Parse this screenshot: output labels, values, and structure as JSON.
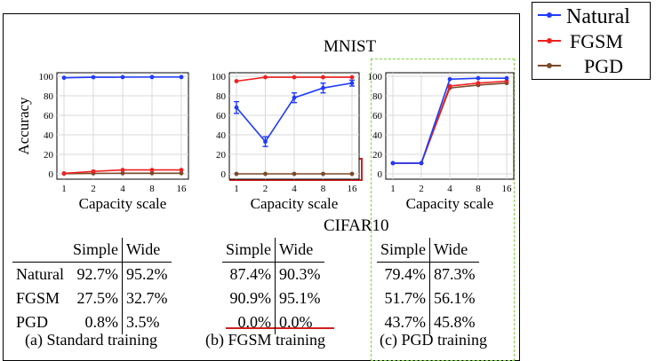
{
  "titles": {
    "mnist": "MNIST",
    "cifar": "CIFAR10"
  },
  "colors": {
    "natural": "#1f3bff",
    "fgsm": "#f02020",
    "pgd": "#7a4a2a",
    "highlight_red": "#d02020",
    "highlight_green": "#7fd040"
  },
  "legend": {
    "items": [
      {
        "label": "Natural",
        "color": "#1f3bff"
      },
      {
        "label": "FGSM",
        "color": "#f02020"
      },
      {
        "label": "PGD",
        "color": "#7a4a2a"
      }
    ]
  },
  "chart_data": [
    {
      "type": "line",
      "id": "standard",
      "categories": [
        "1",
        "2",
        "4",
        "8",
        "16"
      ],
      "xlabel": "Capacity scale",
      "ylabel": "Accuracy",
      "ylim": [
        0,
        100
      ],
      "yticks": [
        0,
        20,
        40,
        60,
        80,
        100
      ],
      "grid": true,
      "series": [
        {
          "name": "Natural",
          "color": "#1f3bff",
          "values": [
            98.5,
            99.0,
            99.1,
            99.2,
            99.2
          ],
          "err": [
            0,
            0,
            0,
            0,
            0
          ]
        },
        {
          "name": "FGSM",
          "color": "#f02020",
          "values": [
            0.5,
            2.5,
            4.0,
            4.0,
            4.0
          ],
          "err": [
            0,
            0,
            0,
            0,
            0
          ]
        },
        {
          "name": "PGD",
          "color": "#7a4a2a",
          "values": [
            0.2,
            0.5,
            0.6,
            0.6,
            0.6
          ],
          "err": [
            0,
            0,
            0,
            0,
            0
          ]
        }
      ]
    },
    {
      "type": "line",
      "id": "fgsm",
      "categories": [
        "1",
        "2",
        "4",
        "8",
        "16"
      ],
      "xlabel": "Capacity scale",
      "ylabel": "",
      "ylim": [
        0,
        100
      ],
      "yticks": [
        0,
        20,
        40,
        60,
        80,
        100
      ],
      "grid": true,
      "series": [
        {
          "name": "Natural",
          "color": "#1f3bff",
          "values": [
            68,
            33,
            78,
            88,
            93
          ],
          "err": [
            6,
            5,
            5,
            5,
            3
          ]
        },
        {
          "name": "FGSM",
          "color": "#f02020",
          "values": [
            95,
            99,
            99,
            99,
            99
          ],
          "err": [
            0,
            0,
            0,
            0,
            0
          ]
        },
        {
          "name": "PGD",
          "color": "#7a4a2a",
          "values": [
            0,
            0,
            0,
            0,
            0
          ],
          "err": [
            0,
            0,
            0,
            0,
            0
          ]
        }
      ]
    },
    {
      "type": "line",
      "id": "pgd",
      "categories": [
        "1",
        "2",
        "4",
        "8",
        "16"
      ],
      "xlabel": "Capacity scale",
      "ylabel": "",
      "ylim": [
        0,
        100
      ],
      "yticks": [
        0,
        20,
        40,
        60,
        80,
        100
      ],
      "grid": true,
      "series": [
        {
          "name": "Natural",
          "color": "#1f3bff",
          "values": [
            11,
            11,
            97,
            98,
            98
          ],
          "err": [
            0,
            0,
            0,
            0,
            0
          ]
        },
        {
          "name": "FGSM",
          "color": "#f02020",
          "values": [
            11,
            11,
            90,
            93,
            95
          ],
          "err": [
            0,
            0,
            0,
            0,
            0
          ]
        },
        {
          "name": "PGD",
          "color": "#7a4a2a",
          "values": [
            11,
            11,
            88,
            91,
            93
          ],
          "err": [
            0,
            0,
            0,
            0,
            0
          ]
        }
      ]
    },
    {
      "type": "table",
      "id": "cifar10",
      "columns": [
        "Simple",
        "Wide"
      ],
      "tables": [
        {
          "caption": "(a) Standard training",
          "rows": [
            {
              "label": "Natural",
              "simple": "92.7%",
              "wide": "95.2%"
            },
            {
              "label": "FGSM",
              "simple": "27.5%",
              "wide": "32.7%"
            },
            {
              "label": "PGD",
              "simple": "0.8%",
              "wide": "3.5%"
            }
          ]
        },
        {
          "caption": "(b) FGSM training",
          "rows": [
            {
              "simple": "87.4%",
              "wide": "90.3%"
            },
            {
              "simple": "90.9%",
              "wide": "95.1%"
            },
            {
              "simple": "0.0%",
              "wide": "0.0%"
            }
          ]
        },
        {
          "caption": "(c) PGD training",
          "rows": [
            {
              "simple": "79.4%",
              "wide": "87.3%"
            },
            {
              "simple": "51.7%",
              "wide": "56.1%"
            },
            {
              "simple": "43.7%",
              "wide": "45.8%"
            }
          ]
        }
      ]
    }
  ]
}
